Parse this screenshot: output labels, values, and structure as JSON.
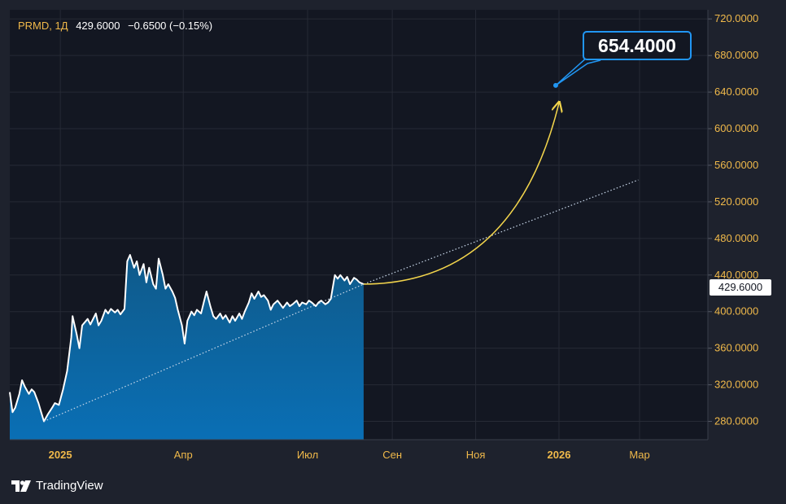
{
  "legend": {
    "symbol": "PRMD",
    "separator": ",",
    "interval": "1Д",
    "last": "429.6000",
    "change": "−0.6500 (−0.15%)"
  },
  "price_label": "429.6000",
  "callout": "654.4000",
  "branding": {
    "logo": "tradingview-logo",
    "text": "TradingView"
  },
  "colors": {
    "background": "#131722",
    "frame": "#1e222d",
    "area_top": "#0f5a8a",
    "area_bottom": "#0a6fb5",
    "line": "#ffffff",
    "accent_yellow": "#f2d44c",
    "accent_blue": "#2196f3",
    "axis_text": "#f0b94a"
  },
  "chart_data": {
    "type": "area",
    "title": "",
    "xlabel": "",
    "ylabel": "",
    "ylim": [
      260,
      730
    ],
    "xlim": [
      "2024-11-25",
      "2026-04-20"
    ],
    "y_ticks": [
      280,
      320,
      360,
      400,
      440,
      480,
      520,
      560,
      600,
      640,
      680,
      720
    ],
    "y_tick_labels": [
      "280.0000",
      "320.0000",
      "360.0000",
      "400.0000",
      "440.0000",
      "480.0000",
      "520.0000",
      "560.0000",
      "600.0000",
      "640.0000",
      "680.0000",
      "720.0000"
    ],
    "x_ticks": [
      {
        "date": "2025-01-01",
        "label": "2025",
        "bold": true
      },
      {
        "date": "2025-04-01",
        "label": "Апр",
        "bold": false
      },
      {
        "date": "2025-07-01",
        "label": "Июл",
        "bold": false
      },
      {
        "date": "2025-09-01",
        "label": "Сен",
        "bold": false
      },
      {
        "date": "2025-11-01",
        "label": "Ноя",
        "bold": false
      },
      {
        "date": "2026-01-01",
        "label": "2026",
        "bold": true
      },
      {
        "date": "2026-03-01",
        "label": "Мар",
        "bold": false
      }
    ],
    "grid": true,
    "series": [
      {
        "values": [
          [
            "2024-11-25",
            312
          ],
          [
            "2024-11-27",
            290
          ],
          [
            "2024-11-29",
            295
          ],
          [
            "2024-12-02",
            310
          ],
          [
            "2024-12-04",
            325
          ],
          [
            "2024-12-06",
            318
          ],
          [
            "2024-12-09",
            310
          ],
          [
            "2024-12-11",
            315
          ],
          [
            "2024-12-13",
            312
          ],
          [
            "2024-12-16",
            300
          ],
          [
            "2024-12-18",
            290
          ],
          [
            "2024-12-20",
            280
          ],
          [
            "2024-12-23",
            288
          ],
          [
            "2024-12-26",
            295
          ],
          [
            "2024-12-28",
            300
          ],
          [
            "2024-12-31",
            298
          ],
          [
            "2025-01-03",
            315
          ],
          [
            "2025-01-06",
            335
          ],
          [
            "2025-01-09",
            372
          ],
          [
            "2025-01-10",
            395
          ],
          [
            "2025-01-13",
            375
          ],
          [
            "2025-01-15",
            360
          ],
          [
            "2025-01-17",
            385
          ],
          [
            "2025-01-21",
            392
          ],
          [
            "2025-01-23",
            386
          ],
          [
            "2025-01-27",
            398
          ],
          [
            "2025-01-29",
            385
          ],
          [
            "2025-01-31",
            390
          ],
          [
            "2025-02-03",
            402
          ],
          [
            "2025-02-05",
            398
          ],
          [
            "2025-02-07",
            403
          ],
          [
            "2025-02-10",
            399
          ],
          [
            "2025-02-12",
            402
          ],
          [
            "2025-02-14",
            397
          ],
          [
            "2025-02-17",
            403
          ],
          [
            "2025-02-19",
            455
          ],
          [
            "2025-02-21",
            462
          ],
          [
            "2025-02-24",
            448
          ],
          [
            "2025-02-26",
            455
          ],
          [
            "2025-02-28",
            440
          ],
          [
            "2025-03-03",
            452
          ],
          [
            "2025-03-05",
            432
          ],
          [
            "2025-03-07",
            448
          ],
          [
            "2025-03-10",
            430
          ],
          [
            "2025-03-12",
            425
          ],
          [
            "2025-03-14",
            458
          ],
          [
            "2025-03-17",
            440
          ],
          [
            "2025-03-19",
            425
          ],
          [
            "2025-03-21",
            430
          ],
          [
            "2025-03-24",
            422
          ],
          [
            "2025-03-26",
            415
          ],
          [
            "2025-03-28",
            402
          ],
          [
            "2025-03-31",
            385
          ],
          [
            "2025-04-02",
            365
          ],
          [
            "2025-04-04",
            390
          ],
          [
            "2025-04-07",
            400
          ],
          [
            "2025-04-09",
            396
          ],
          [
            "2025-04-11",
            402
          ],
          [
            "2025-04-14",
            398
          ],
          [
            "2025-04-16",
            410
          ],
          [
            "2025-04-18",
            422
          ],
          [
            "2025-04-21",
            405
          ],
          [
            "2025-04-23",
            395
          ],
          [
            "2025-04-25",
            392
          ],
          [
            "2025-04-28",
            398
          ],
          [
            "2025-04-30",
            392
          ],
          [
            "2025-05-02",
            396
          ],
          [
            "2025-05-05",
            388
          ],
          [
            "2025-05-07",
            395
          ],
          [
            "2025-05-09",
            390
          ],
          [
            "2025-05-12",
            398
          ],
          [
            "2025-05-14",
            392
          ],
          [
            "2025-05-16",
            400
          ],
          [
            "2025-05-19",
            410
          ],
          [
            "2025-05-21",
            420
          ],
          [
            "2025-05-23",
            414
          ],
          [
            "2025-05-26",
            422
          ],
          [
            "2025-05-28",
            416
          ],
          [
            "2025-05-30",
            418
          ],
          [
            "2025-06-02",
            412
          ],
          [
            "2025-06-04",
            402
          ],
          [
            "2025-06-06",
            408
          ],
          [
            "2025-06-09",
            412
          ],
          [
            "2025-06-11",
            408
          ],
          [
            "2025-06-13",
            404
          ],
          [
            "2025-06-16",
            410
          ],
          [
            "2025-06-18",
            406
          ],
          [
            "2025-06-20",
            408
          ],
          [
            "2025-06-23",
            412
          ],
          [
            "2025-06-25",
            406
          ],
          [
            "2025-06-27",
            410
          ],
          [
            "2025-06-30",
            408
          ],
          [
            "2025-07-02",
            412
          ],
          [
            "2025-07-04",
            410
          ],
          [
            "2025-07-07",
            406
          ],
          [
            "2025-07-09",
            410
          ],
          [
            "2025-07-11",
            412
          ],
          [
            "2025-07-14",
            408
          ],
          [
            "2025-07-16",
            410
          ],
          [
            "2025-07-18",
            414
          ],
          [
            "2025-07-21",
            440
          ],
          [
            "2025-07-23",
            436
          ],
          [
            "2025-07-25",
            440
          ],
          [
            "2025-07-28",
            434
          ],
          [
            "2025-07-30",
            438
          ],
          [
            "2025-08-01",
            430
          ],
          [
            "2025-08-04",
            437
          ],
          [
            "2025-08-06",
            435
          ],
          [
            "2025-08-08",
            432
          ],
          [
            "2025-08-11",
            430
          ]
        ]
      }
    ],
    "annotations": {
      "trend_line": [
        [
          "2024-12-20",
          280
        ],
        [
          "2025-08-11",
          430
        ],
        [
          "2026-02-28",
          544
        ]
      ],
      "curved_arrow": {
        "from": [
          "2025-08-11",
          430
        ],
        "via": [
          "2025-11-10",
          480
        ],
        "to": [
          "2026-01-01",
          628
        ]
      },
      "target_point": [
        "2026-01-01",
        654.4
      ]
    }
  }
}
